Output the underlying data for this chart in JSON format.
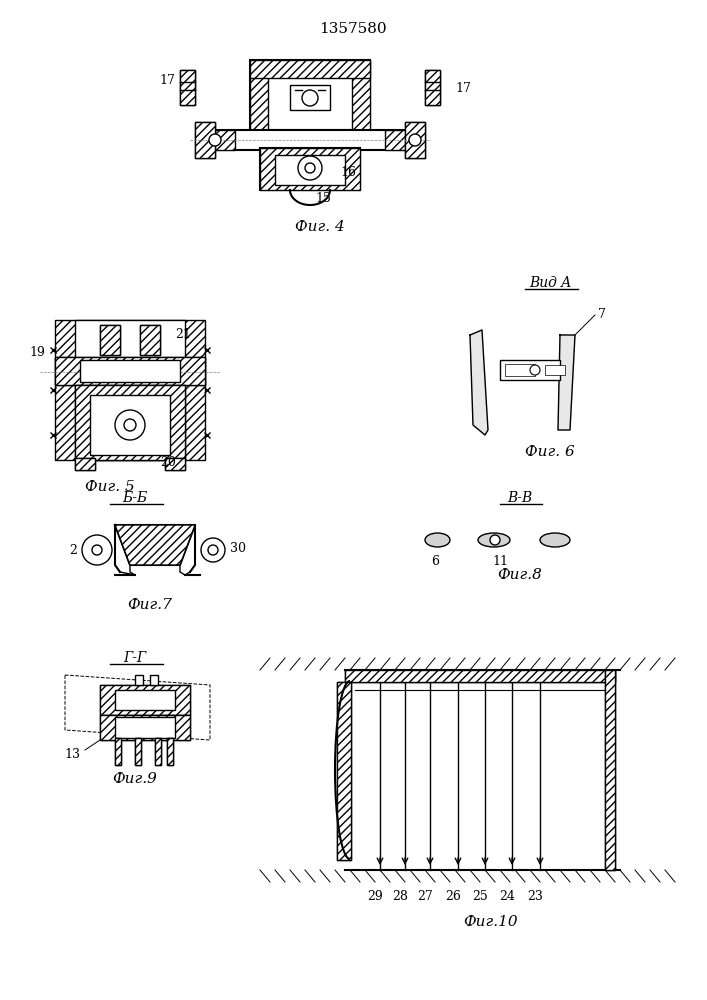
{
  "title": "1357580",
  "bg_color": "#ffffff",
  "line_color": "#000000",
  "hatch_color": "#555555",
  "fig_labels": {
    "fig4": "Фиг. 4",
    "fig5": "Фиг. 5",
    "fig6": "Фиг. 6",
    "fig7": "Фиг.7",
    "fig8": "Фиг.8",
    "fig9": "Фиг.9",
    "fig10": "Фиг.10",
    "vidA": "Вид A",
    "bb": "Б-Б",
    "vv": "В-В",
    "gg": "Г-Г"
  },
  "numbers": {
    "fig4_labels": [
      "17",
      "17",
      "16",
      "15"
    ],
    "fig5_labels": [
      "19",
      "21",
      "20"
    ],
    "fig6_labels": [
      "7"
    ],
    "fig7_labels": [
      "2",
      "30"
    ],
    "fig8_labels": [
      "6",
      "11"
    ],
    "fig9_labels": [
      "13"
    ],
    "fig10_labels": [
      "29",
      "28",
      "27",
      "26",
      "25",
      "24",
      "23"
    ]
  }
}
